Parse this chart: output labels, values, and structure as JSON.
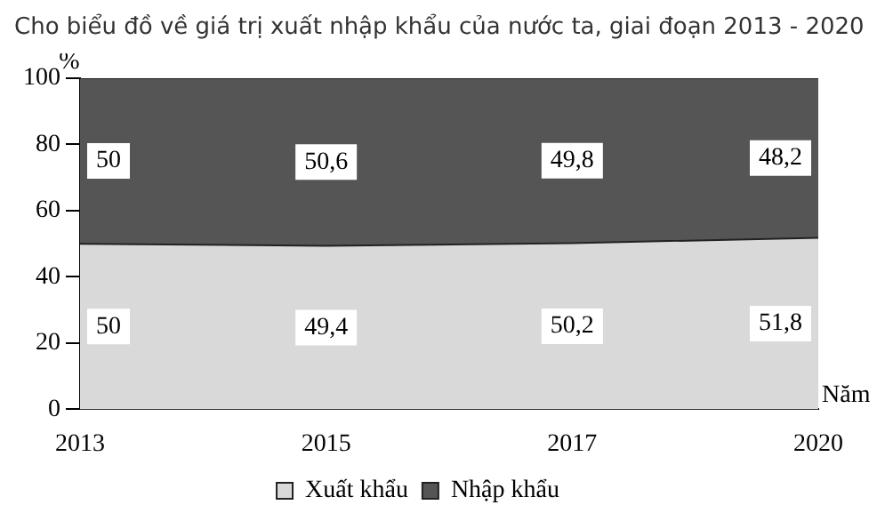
{
  "chart_data": {
    "type": "area",
    "title": "Cho biểu đồ về giá trị xuất nhập khẩu của nước ta, giai đoạn 2013 - 2020",
    "ylabel": "%",
    "xlabel": "Năm",
    "categories": [
      "2013",
      "2015",
      "2017",
      "2020"
    ],
    "stacked": true,
    "series": [
      {
        "name": "Xuất khẩu",
        "color": "#d9d9d9",
        "values": [
          50,
          49.4,
          50.2,
          51.8
        ],
        "value_labels": [
          "50",
          "49,4",
          "50,2",
          "51,8"
        ]
      },
      {
        "name": "Nhập khẩu",
        "color": "#555555",
        "values": [
          50,
          50.6,
          49.8,
          48.2
        ],
        "value_labels": [
          "50",
          "50,6",
          "49,8",
          "48,2"
        ]
      }
    ],
    "ylim": [
      0,
      100
    ],
    "yticks": [
      0,
      20,
      40,
      60,
      80,
      100
    ],
    "grid": false,
    "legend": "bottom"
  }
}
